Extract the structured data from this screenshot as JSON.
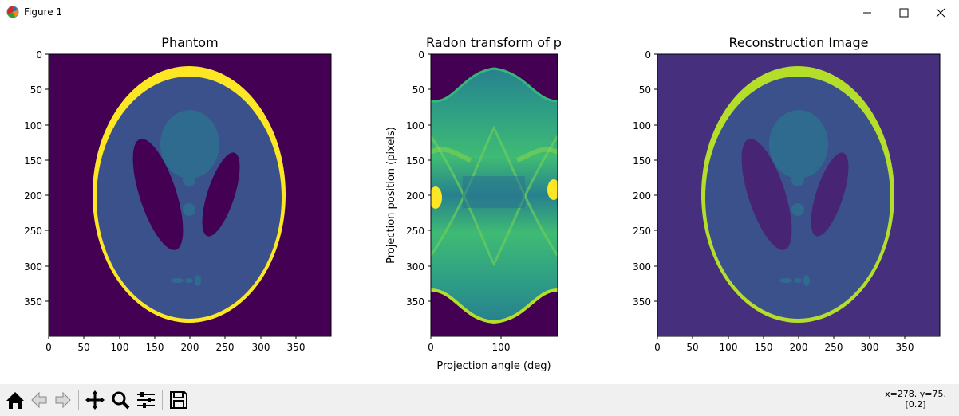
{
  "window": {
    "title": "Figure 1"
  },
  "plots": [
    {
      "title": "Phantom",
      "xticks": [
        "0",
        "50",
        "100",
        "150",
        "200",
        "250",
        "300",
        "350"
      ],
      "yticks": [
        "0",
        "50",
        "100",
        "150",
        "200",
        "250",
        "300",
        "350"
      ]
    },
    {
      "title": "Radon transform of p",
      "xlabel": "Projection angle (deg)",
      "ylabel": "Projection position (pixels)",
      "xticks": [
        "0",
        "100"
      ],
      "yticks": [
        "0",
        "50",
        "100",
        "150",
        "200",
        "250",
        "300",
        "350"
      ]
    },
    {
      "title": "Reconstruction Image",
      "xticks": [
        "0",
        "50",
        "100",
        "150",
        "200",
        "250",
        "300",
        "350"
      ],
      "yticks": [
        "0",
        "50",
        "100",
        "150",
        "200",
        "250",
        "300",
        "350"
      ]
    }
  ],
  "toolbar": {
    "buttons": [
      "home-icon",
      "back-icon",
      "forward-icon",
      "pan-icon",
      "zoom-icon",
      "configure-subplots-icon",
      "save-icon"
    ],
    "coords_line1": "x=278. y=75.",
    "coords_line2": "[0.2]"
  },
  "colors": {
    "background_dark": "#440154",
    "ellipse_fill": "#3b518b",
    "ring_yellow": "#fde725",
    "recon_background": "#46307e",
    "recon_ring": "#b5de2b"
  }
}
